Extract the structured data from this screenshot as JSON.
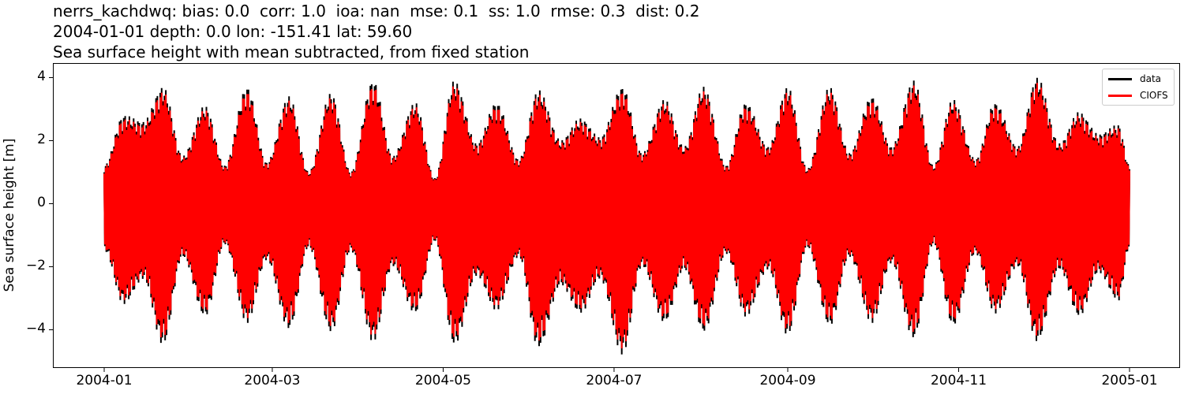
{
  "figure": {
    "title_lines": [
      "nerrs_kachdwq: bias: 0.0  corr: 1.0  ioa: nan  mse: 0.1  ss: 1.0  rmse: 0.3  dist: 0.2",
      "2004-01-01 depth: 0.0 lon: -151.41 lat: 59.60",
      "Sea surface height with mean subtracted, from fixed station"
    ],
    "legend": [
      {
        "label": "data",
        "color": "#000000"
      },
      {
        "label": "CIOFS",
        "color": "#ff0000"
      }
    ]
  },
  "chart_data": {
    "type": "line",
    "title": "nerrs_kachdwq: bias: 0.0  corr: 1.0  ioa: nan  mse: 0.1  ss: 1.0  rmse: 0.3  dist: 0.2 | 2004-01-01 depth: 0.0 lon: -151.41 lat: 59.60 | Sea surface height with mean subtracted, from fixed station",
    "xlabel": "",
    "ylabel": "Sea surface height [m]",
    "ylim": [
      -5.2,
      4.45
    ],
    "xlim": [
      "2003-12-13",
      "2005-01-19"
    ],
    "grid": false,
    "legend_position": "upper right",
    "yticks": [
      4,
      2,
      0,
      -2,
      -4
    ],
    "ytick_labels": [
      "4",
      "2",
      "0",
      "−2",
      "−4"
    ],
    "xticks": [
      "2004-01",
      "2004-03",
      "2004-05",
      "2004-07",
      "2004-09",
      "2004-11",
      "2005-01"
    ],
    "series": [
      {
        "name": "data",
        "color": "#000000",
        "description": "hourly observed sea surface height, semidiurnal tide with spring-neap modulation"
      },
      {
        "name": "CIOFS",
        "color": "#ff0000",
        "description": "model sea surface height, nearly identical to data, slightly smaller extremes"
      }
    ],
    "envelope_note": "approximate spring/neap envelope of the tidal signal (day of year, upper max m, lower min m)",
    "envelope": {
      "day": [
        0,
        7,
        14,
        21,
        28,
        36,
        43,
        51,
        58,
        66,
        73,
        81,
        88,
        96,
        103,
        111,
        118,
        125,
        133,
        140,
        148,
        155,
        163,
        170,
        177,
        185,
        192,
        200,
        207,
        214,
        222,
        229,
        237,
        244,
        251,
        259,
        266,
        274,
        281,
        289,
        296,
        303,
        311,
        318,
        326,
        333,
        341,
        348,
        355,
        362,
        366
      ],
      "upper": [
        1.2,
        2.8,
        2.6,
        3.7,
        1.5,
        3.1,
        1.2,
        3.7,
        1.3,
        3.4,
        1.0,
        3.5,
        1.0,
        3.9,
        1.5,
        3.2,
        0.8,
        3.9,
        1.9,
        3.2,
        1.4,
        3.6,
        2.0,
        2.7,
        2.1,
        3.7,
        1.6,
        3.3,
        1.8,
        3.7,
        1.2,
        3.2,
        1.8,
        3.7,
        1.1,
        3.7,
        1.6,
        3.4,
        1.8,
        3.9,
        1.2,
        3.3,
        1.4,
        3.2,
        1.8,
        4.0,
        1.9,
        2.9,
        2.2,
        2.5,
        1.2
      ],
      "lower": [
        -1.5,
        -3.2,
        -2.4,
        -4.5,
        -1.7,
        -3.6,
        -1.3,
        -3.8,
        -1.8,
        -4.0,
        -1.4,
        -4.1,
        -1.5,
        -4.4,
        -2.0,
        -3.5,
        -1.2,
        -4.5,
        -2.3,
        -3.4,
        -1.7,
        -4.6,
        -2.6,
        -3.5,
        -2.4,
        -4.8,
        -2.0,
        -3.8,
        -2.1,
        -4.1,
        -1.6,
        -3.6,
        -2.1,
        -4.2,
        -1.4,
        -3.9,
        -1.7,
        -3.8,
        -1.9,
        -4.3,
        -1.3,
        -3.9,
        -1.6,
        -3.5,
        -2.0,
        -4.4,
        -2.1,
        -3.6,
        -2.2,
        -3.1,
        -1.4
      ]
    }
  }
}
